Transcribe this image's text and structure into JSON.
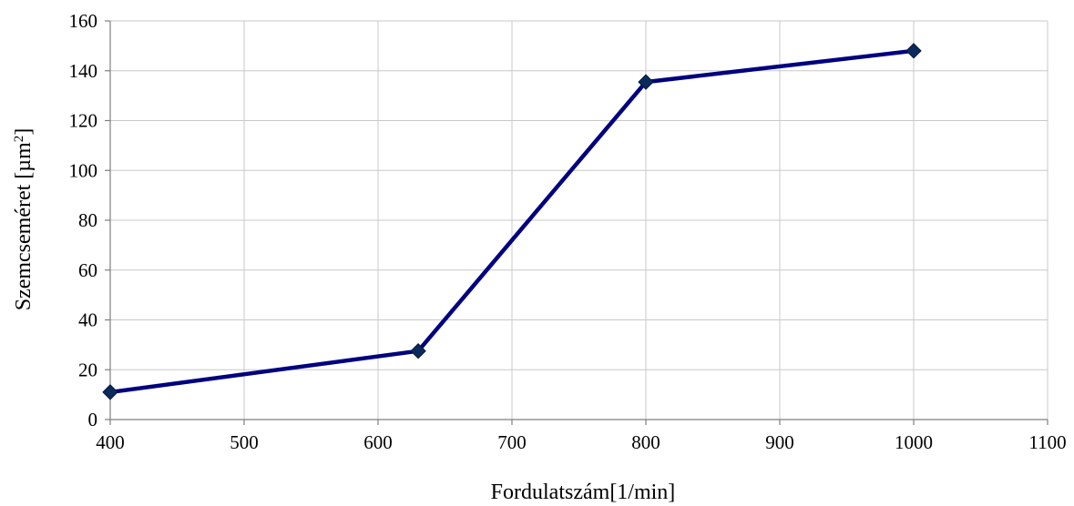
{
  "chart_data": {
    "type": "line",
    "title": "",
    "xlabel": "Fordulatszám[1/min]",
    "ylabel_main": "Szemcseméret [µm",
    "ylabel_sup": "2",
    "ylabel_end": "]",
    "xlim": [
      400,
      1100
    ],
    "ylim": [
      0,
      160
    ],
    "x_ticks": [
      400,
      500,
      600,
      700,
      800,
      900,
      1000,
      1100
    ],
    "y_ticks": [
      0,
      20,
      40,
      60,
      80,
      100,
      120,
      140,
      160
    ],
    "grid": true,
    "legend": "none",
    "series": [
      {
        "color": "#000080",
        "marker": "diamond",
        "marker_color": "#0a2a5e",
        "x": [
          400,
          630,
          800,
          1000
        ],
        "y": [
          11,
          27.5,
          135.5,
          148
        ]
      }
    ]
  }
}
